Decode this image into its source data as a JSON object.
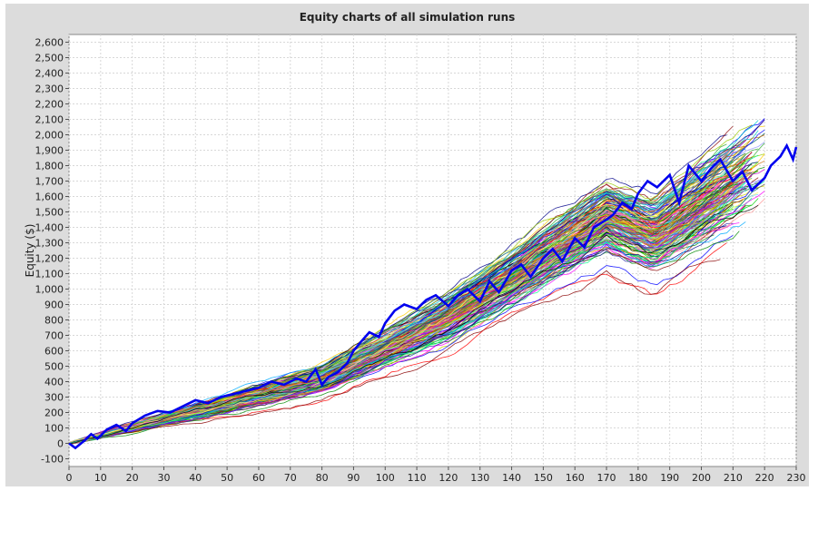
{
  "chart_data": {
    "type": "line",
    "title": "Equity charts of all simulation runs",
    "xlabel": "",
    "ylabel": "Equity ($)",
    "xlim": [
      0,
      230
    ],
    "ylim": [
      -150,
      2650
    ],
    "x_ticks": [
      0,
      10,
      20,
      30,
      40,
      50,
      60,
      70,
      80,
      90,
      100,
      110,
      120,
      130,
      140,
      150,
      160,
      170,
      180,
      190,
      200,
      210,
      220,
      230
    ],
    "y_ticks": [
      -100,
      0,
      100,
      200,
      300,
      400,
      500,
      600,
      700,
      800,
      900,
      1000,
      1100,
      1200,
      1300,
      1400,
      1500,
      1600,
      1700,
      1800,
      1900,
      2000,
      2100,
      2200,
      2300,
      2400,
      2500,
      2600
    ],
    "y_tick_labels": [
      "-100",
      "0",
      "100",
      "200",
      "300",
      "400",
      "500",
      "600",
      "700",
      "800",
      "900",
      "1,000",
      "1,100",
      "1,200",
      "1,300",
      "1,400",
      "1,500",
      "1,600",
      "1,700",
      "1,800",
      "1,900",
      "2,000",
      "2,100",
      "2,200",
      "2,300",
      "2,400",
      "2,500",
      "2,600"
    ],
    "grid": true,
    "legend": "none",
    "highlight_series": {
      "name": "",
      "color": "#0000ee",
      "x": [
        0,
        2,
        5,
        7,
        9,
        12,
        15,
        18,
        20,
        24,
        28,
        32,
        36,
        40,
        44,
        48,
        52,
        56,
        60,
        64,
        68,
        72,
        75,
        78,
        80,
        82,
        85,
        88,
        90,
        92,
        95,
        98,
        100,
        103,
        106,
        110,
        113,
        116,
        120,
        123,
        126,
        130,
        133,
        136,
        140,
        143,
        146,
        150,
        153,
        156,
        160,
        163,
        166,
        170,
        172,
        175,
        178,
        180,
        183,
        186,
        190,
        193,
        196,
        200,
        203,
        206,
        210,
        213,
        216,
        220,
        222,
        225,
        227,
        229,
        230
      ],
      "y": [
        0,
        -30,
        20,
        60,
        30,
        90,
        120,
        80,
        130,
        180,
        210,
        200,
        240,
        280,
        260,
        300,
        320,
        340,
        360,
        400,
        380,
        420,
        400,
        480,
        380,
        430,
        460,
        520,
        600,
        650,
        720,
        690,
        780,
        860,
        900,
        870,
        930,
        960,
        890,
        960,
        1000,
        920,
        1050,
        980,
        1120,
        1160,
        1080,
        1200,
        1260,
        1180,
        1330,
        1270,
        1400,
        1450,
        1480,
        1560,
        1520,
        1620,
        1700,
        1660,
        1740,
        1560,
        1800,
        1700,
        1780,
        1840,
        1700,
        1760,
        1640,
        1720,
        1800,
        1860,
        1930,
        1840,
        1920
      ]
    },
    "ensemble": {
      "runs": 180,
      "colors": [
        "#ff0000",
        "#00cc00",
        "#0000ff",
        "#ff00ff",
        "#00cccc",
        "#cccc00",
        "#880000",
        "#008800",
        "#000088",
        "#ff8800",
        "#8800ff",
        "#00ff88",
        "#ff66cc",
        "#66ccff",
        "#99cc00",
        "#cc6600",
        "#666666",
        "#ff9999",
        "#9999ff",
        "#33aa33",
        "#aa3333",
        "#3333aa",
        "#ffcc00",
        "#00aaff",
        "#cc00cc",
        "#006666",
        "#996633",
        "#ffff66",
        "#66ff66",
        "#000000"
      ]
    }
  }
}
